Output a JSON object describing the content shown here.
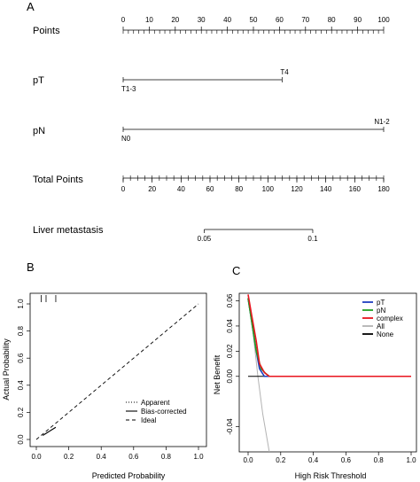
{
  "panel_labels": {
    "a": "A",
    "b": "B",
    "c": "C"
  },
  "chart_data": [
    {
      "type": "nomogram",
      "points_axis": {
        "label": "Points",
        "range": [
          0,
          100
        ],
        "ticks": [
          0,
          10,
          20,
          30,
          40,
          50,
          60,
          70,
          80,
          90,
          100
        ]
      },
      "variables": [
        {
          "label": "pT",
          "levels": [
            {
              "name": "T1-3",
              "points": 0
            },
            {
              "name": "T4",
              "points": 61
            }
          ]
        },
        {
          "label": "pN",
          "levels": [
            {
              "name": "N0",
              "points": 0
            },
            {
              "name": "N1-2",
              "points": 100
            }
          ]
        }
      ],
      "total_points_axis": {
        "label": "Total Points",
        "range": [
          0,
          180
        ],
        "ticks": [
          0,
          20,
          40,
          60,
          80,
          100,
          120,
          140,
          160,
          180
        ]
      },
      "outcome_axis": {
        "label": "Liver metastasis",
        "ticks": [
          {
            "label": "0.05",
            "total_points": 56
          },
          {
            "label": "0.1",
            "total_points": 131
          }
        ]
      }
    },
    {
      "type": "line",
      "xlabel": "Predicted Probability",
      "ylabel": "Actual Probability",
      "xlim": [
        0,
        1
      ],
      "ylim": [
        0,
        1
      ],
      "xticks": [
        "0.0",
        "0.2",
        "0.4",
        "0.6",
        "0.8",
        "1.0"
      ],
      "yticks": [
        "0.0",
        "0.2",
        "0.4",
        "0.6",
        "0.8",
        "1.0"
      ],
      "legend": [
        "Apparent",
        "Bias-corrected",
        "Ideal"
      ],
      "legend_position": "bottom-right",
      "series": [
        {
          "name": "Apparent",
          "x": [
            0.04,
            0.06,
            0.08,
            0.1,
            0.12
          ],
          "y": [
            0.03,
            0.045,
            0.06,
            0.075,
            0.09
          ]
        },
        {
          "name": "Bias-corrected",
          "x": [
            0.04,
            0.06,
            0.08,
            0.1,
            0.12
          ],
          "y": [
            0.03,
            0.045,
            0.06,
            0.075,
            0.09
          ]
        },
        {
          "name": "Ideal",
          "x": [
            0,
            1
          ],
          "y": [
            0,
            1
          ]
        }
      ],
      "rug_x": [
        0.03,
        0.06,
        0.12
      ]
    },
    {
      "type": "line",
      "xlabel": "High Risk Threshold",
      "ylabel": "Net Benefit",
      "xlim": [
        0,
        1
      ],
      "ylim": [
        -0.06,
        0.066
      ],
      "xticks": [
        "0.0",
        "0.2",
        "0.4",
        "0.6",
        "0.8",
        "1.0"
      ],
      "yticks": [
        "-0.04",
        "0.00",
        "0.02",
        "0.04",
        "0.06"
      ],
      "legend_position": "top-right",
      "series": [
        {
          "name": "pT",
          "color": "#1f3fbf",
          "x": [
            0,
            0.05,
            0.07,
            0.09,
            0.1,
            1.0
          ],
          "y": [
            0.062,
            0.02,
            0.006,
            0.002,
            0.0,
            0.0
          ]
        },
        {
          "name": "pN",
          "color": "#22a022",
          "x": [
            0,
            0.05,
            0.08,
            0.11,
            0.13,
            1.0
          ],
          "y": [
            0.062,
            0.02,
            0.006,
            0.002,
            0.0,
            0.0
          ]
        },
        {
          "name": "complex",
          "color": "#e8141e",
          "x": [
            0,
            0.02,
            0.05,
            0.07,
            0.1,
            0.13,
            1.0
          ],
          "y": [
            0.065,
            0.05,
            0.028,
            0.01,
            0.003,
            0.0,
            0.0
          ]
        },
        {
          "name": "All",
          "color": "#b3b3b3",
          "x": [
            0,
            0.03,
            0.06,
            0.09,
            0.13
          ],
          "y": [
            0.065,
            0.035,
            0.0,
            -0.03,
            -0.06
          ]
        },
        {
          "name": "None",
          "color": "#000000",
          "x": [
            0,
            1
          ],
          "y": [
            0,
            0
          ]
        }
      ]
    }
  ]
}
